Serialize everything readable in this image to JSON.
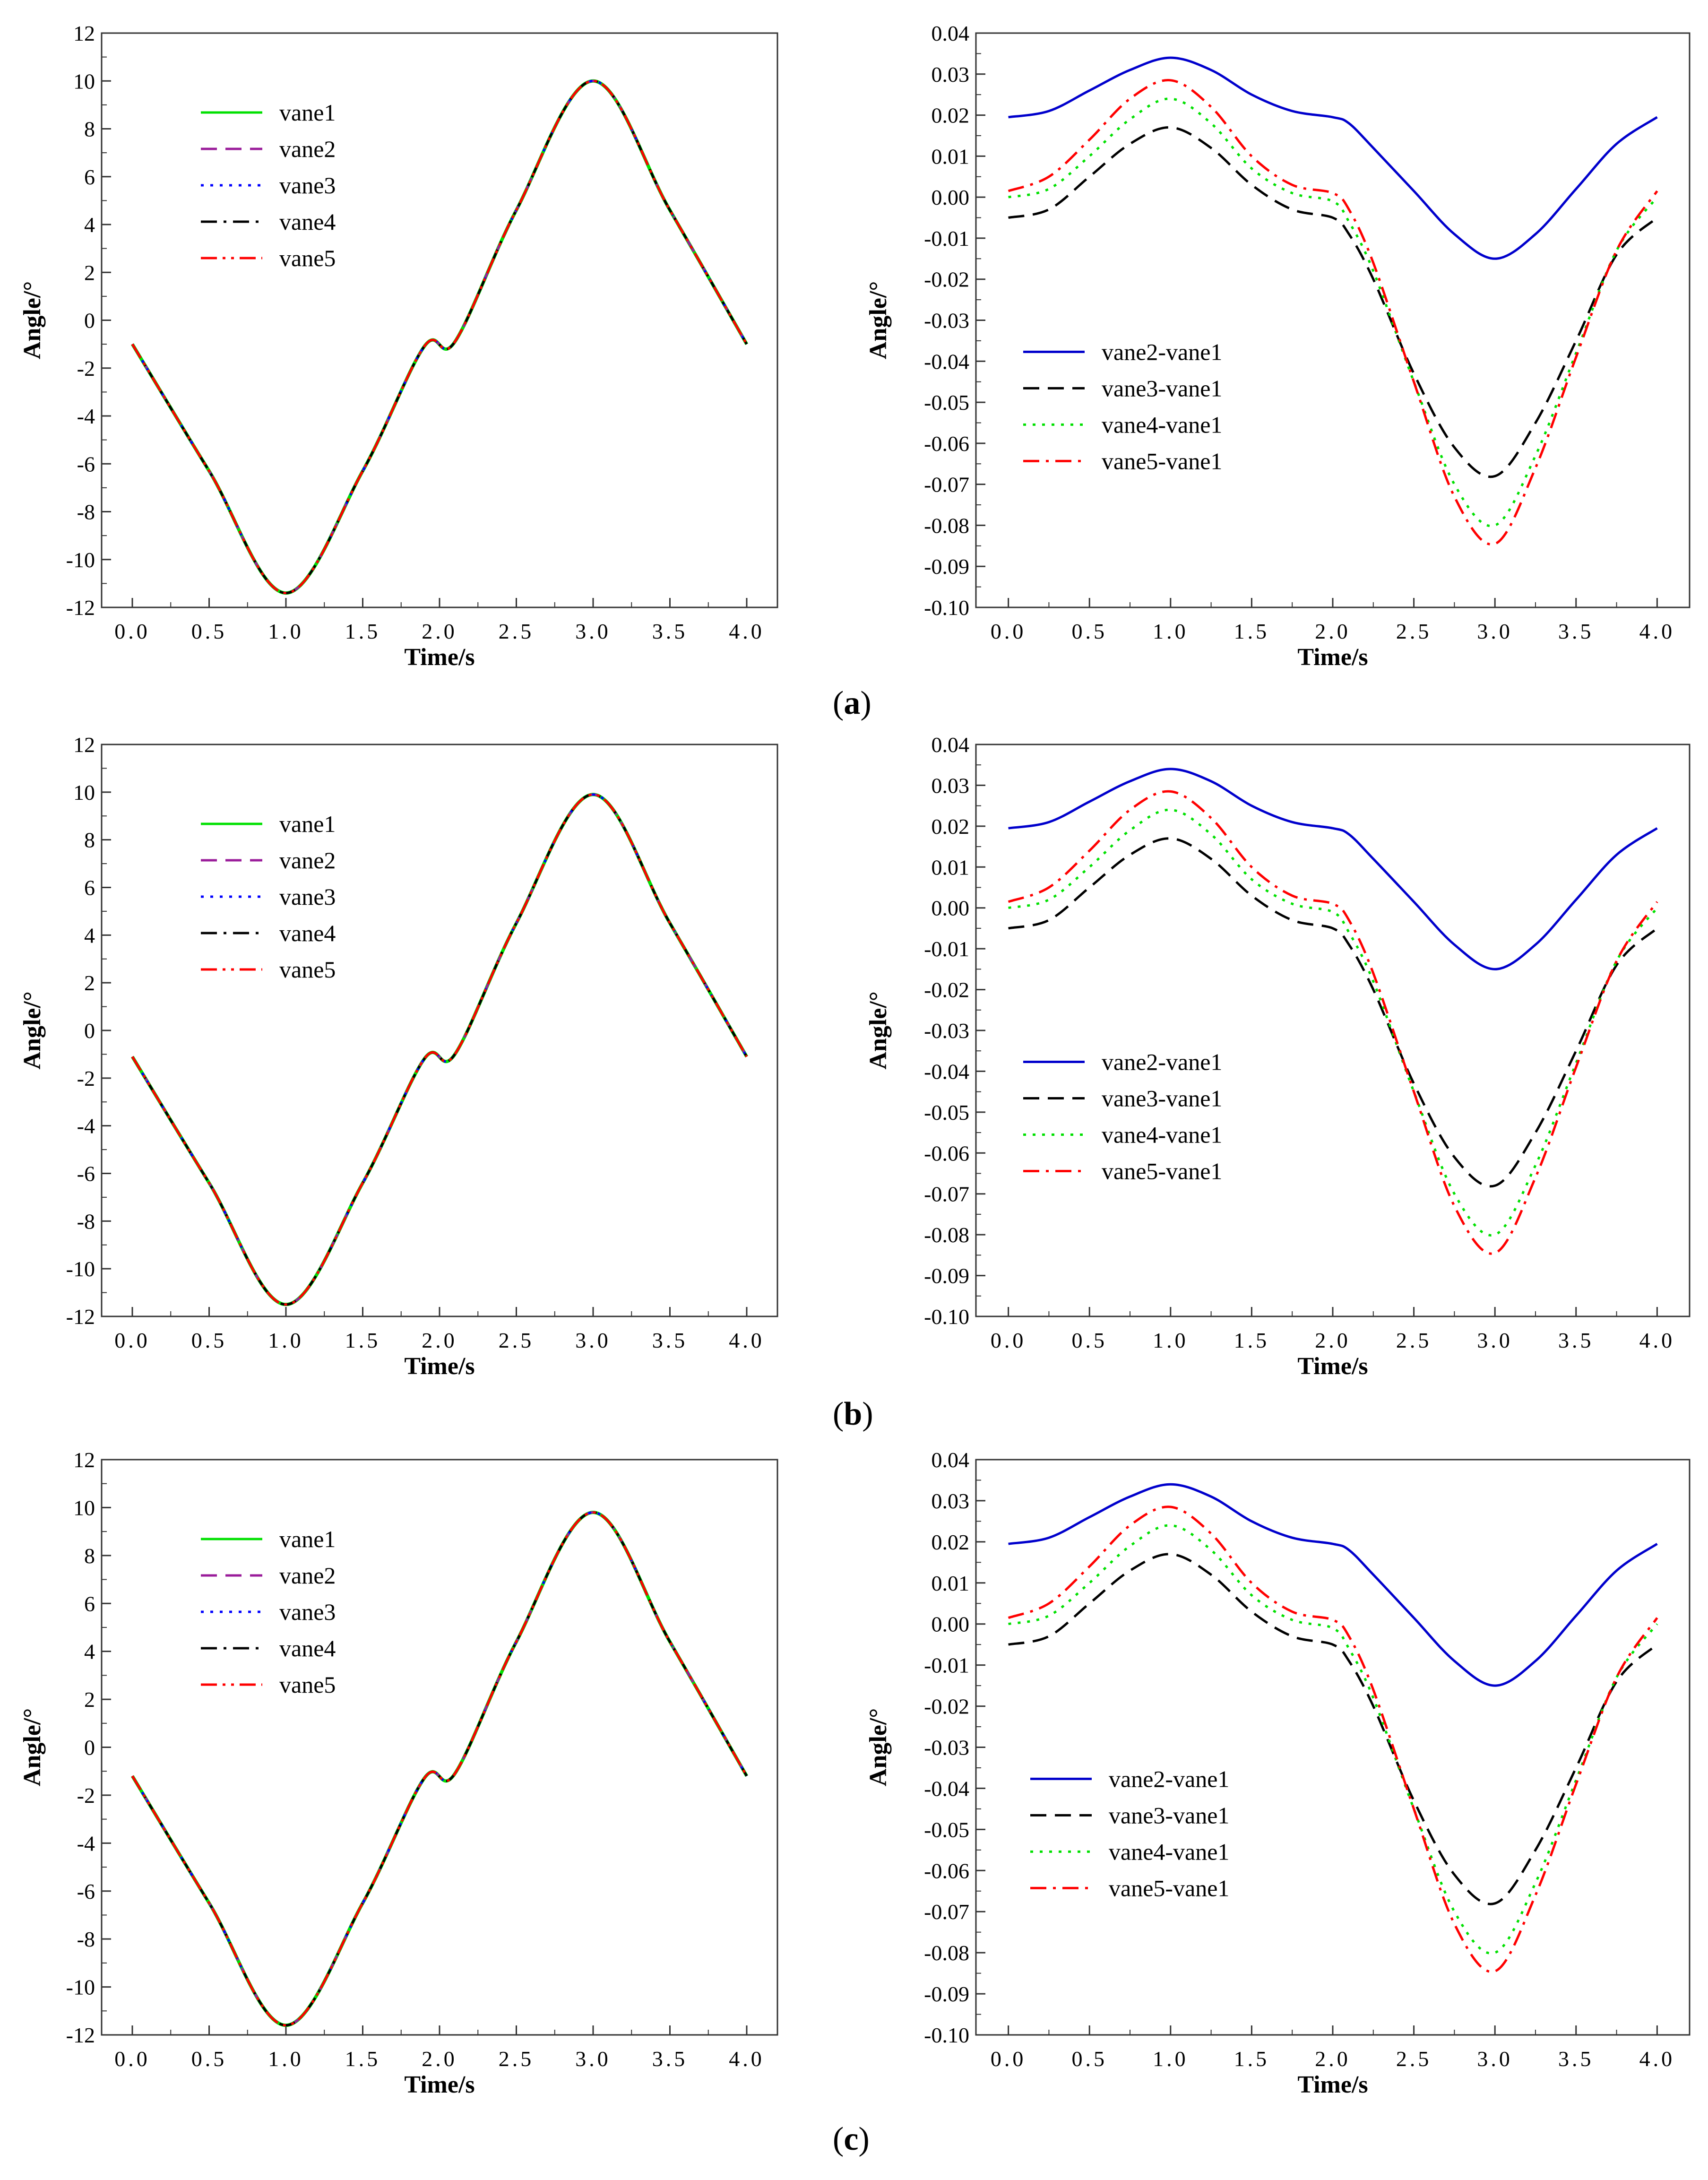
{
  "figure": {
    "captions": [
      {
        "open": "(",
        "label": "a",
        "close": ")"
      },
      {
        "open": "(",
        "label": "b",
        "close": ")"
      },
      {
        "open": "(",
        "label": "c",
        "close": ")"
      }
    ]
  },
  "chart_data": [
    {
      "id": "a-left",
      "type": "line",
      "title": "",
      "xlabel": "Time/s",
      "ylabel": "Angle/°",
      "xlim": [
        -0.2,
        4.2
      ],
      "ylim": [
        -12,
        12
      ],
      "xticks": [
        "0.0",
        "0.5",
        "1.0",
        "1.5",
        "2.0",
        "2.5",
        "3.0",
        "3.5",
        "4.0"
      ],
      "yticks": [
        "-12",
        "-10",
        "-8",
        "-6",
        "-4",
        "-2",
        "0",
        "2",
        "4",
        "6",
        "8",
        "10",
        "12"
      ],
      "legend_position": "upper-left",
      "x": [
        0,
        0.5,
        1.0,
        1.5,
        1.9,
        2.1,
        2.5,
        3.0,
        3.5,
        4.0
      ],
      "series": [
        {
          "name": "vane1",
          "color": "#00e000",
          "dash": "solid",
          "values": [
            -1.0,
            -6.3,
            -11.4,
            -6.3,
            -1.1,
            -0.9,
            4.6,
            10.0,
            4.6,
            -1.0
          ]
        },
        {
          "name": "vane2",
          "color": "#9a1c9a",
          "dash": "dash",
          "values": [
            -1.0,
            -6.3,
            -11.4,
            -6.3,
            -1.1,
            -0.9,
            4.6,
            10.0,
            4.6,
            -1.0
          ]
        },
        {
          "name": "vane3",
          "color": "#0000ff",
          "dash": "dot",
          "values": [
            -1.0,
            -6.3,
            -11.4,
            -6.3,
            -1.1,
            -0.9,
            4.6,
            10.0,
            4.6,
            -1.0
          ]
        },
        {
          "name": "vane4",
          "color": "#000000",
          "dash": "dashdot",
          "values": [
            -1.0,
            -6.3,
            -11.4,
            -6.3,
            -1.1,
            -0.9,
            4.6,
            10.0,
            4.6,
            -1.0
          ]
        },
        {
          "name": "vane5",
          "color": "#ff0000",
          "dash": "dashdotdot",
          "values": [
            -1.0,
            -6.3,
            -11.4,
            -6.3,
            -1.1,
            -0.9,
            4.6,
            10.0,
            4.6,
            -1.0
          ]
        }
      ]
    },
    {
      "id": "a-right",
      "type": "line",
      "title": "",
      "xlabel": "Time/s",
      "ylabel": "Angle/°",
      "xlim": [
        -0.2,
        4.2
      ],
      "ylim": [
        -0.1,
        0.04
      ],
      "xticks": [
        "0.0",
        "0.5",
        "1.0",
        "1.5",
        "2.0",
        "2.5",
        "3.0",
        "3.5",
        "4.0"
      ],
      "yticks": [
        "-0.10",
        "-0.09",
        "-0.08",
        "-0.07",
        "-0.06",
        "-0.05",
        "-0.04",
        "-0.03",
        "-0.02",
        "-0.01",
        "0.00",
        "0.01",
        "0.02",
        "0.03",
        "0.04"
      ],
      "legend_position": "lower-left",
      "x": [
        0,
        0.25,
        0.5,
        0.75,
        1.0,
        1.25,
        1.5,
        1.75,
        2.0,
        2.1,
        2.25,
        2.5,
        2.75,
        3.0,
        3.25,
        3.5,
        3.75,
        4.0
      ],
      "series": [
        {
          "name": "vane2-vane1",
          "color": "#0000cc",
          "dash": "solid",
          "values": [
            0.0195,
            0.021,
            0.026,
            0.031,
            0.034,
            0.031,
            0.025,
            0.021,
            0.0195,
            0.018,
            0.012,
            0.0015,
            -0.009,
            -0.015,
            -0.009,
            0.002,
            0.013,
            0.0195
          ]
        },
        {
          "name": "vane3-vane1",
          "color": "#000000",
          "dash": "dash",
          "values": [
            -0.005,
            -0.003,
            0.005,
            0.013,
            0.017,
            0.012,
            0.003,
            -0.003,
            -0.005,
            -0.009,
            -0.02,
            -0.043,
            -0.061,
            -0.068,
            -0.055,
            -0.035,
            -0.014,
            -0.005
          ]
        },
        {
          "name": "vane4-vane1",
          "color": "#00e000",
          "dash": "dot",
          "values": [
            0.0,
            0.002,
            0.01,
            0.019,
            0.024,
            0.018,
            0.007,
            0.001,
            -0.001,
            -0.006,
            -0.018,
            -0.045,
            -0.07,
            -0.08,
            -0.063,
            -0.038,
            -0.013,
            0.0
          ]
        },
        {
          "name": "vane5-vane1",
          "color": "#ff0000",
          "dash": "dashdot",
          "values": [
            0.0015,
            0.005,
            0.014,
            0.024,
            0.0285,
            0.022,
            0.01,
            0.003,
            0.001,
            -0.003,
            -0.016,
            -0.045,
            -0.073,
            -0.0845,
            -0.066,
            -0.039,
            -0.013,
            0.0015
          ]
        }
      ]
    },
    {
      "id": "b-left",
      "type": "line",
      "title": "",
      "xlabel": "Time/s",
      "ylabel": "Angle/°",
      "xlim": [
        -0.2,
        4.2
      ],
      "ylim": [
        -12,
        12
      ],
      "xticks": [
        "0.0",
        "0.5",
        "1.0",
        "1.5",
        "2.0",
        "2.5",
        "3.0",
        "3.5",
        "4.0"
      ],
      "yticks": [
        "-12",
        "-10",
        "-8",
        "-6",
        "-4",
        "-2",
        "0",
        "2",
        "4",
        "6",
        "8",
        "10",
        "12"
      ],
      "legend_position": "upper-left",
      "x": [
        0,
        0.5,
        1.0,
        1.5,
        1.9,
        2.1,
        2.5,
        3.0,
        3.5,
        4.0
      ],
      "series": [
        {
          "name": "vane1",
          "color": "#00e000",
          "dash": "solid",
          "values": [
            -1.1,
            -6.4,
            -11.5,
            -6.4,
            -1.2,
            -1.0,
            4.5,
            9.9,
            4.5,
            -1.1
          ]
        },
        {
          "name": "vane2",
          "color": "#9a1c9a",
          "dash": "dash",
          "values": [
            -1.1,
            -6.4,
            -11.5,
            -6.4,
            -1.2,
            -1.0,
            4.5,
            9.9,
            4.5,
            -1.1
          ]
        },
        {
          "name": "vane3",
          "color": "#0000ff",
          "dash": "dot",
          "values": [
            -1.1,
            -6.4,
            -11.5,
            -6.4,
            -1.2,
            -1.0,
            4.5,
            9.9,
            4.5,
            -1.1
          ]
        },
        {
          "name": "vane4",
          "color": "#000000",
          "dash": "dashdot",
          "values": [
            -1.1,
            -6.4,
            -11.5,
            -6.4,
            -1.2,
            -1.0,
            4.5,
            9.9,
            4.5,
            -1.1
          ]
        },
        {
          "name": "vane5",
          "color": "#ff0000",
          "dash": "dashdotdot",
          "values": [
            -1.1,
            -6.4,
            -11.5,
            -6.4,
            -1.2,
            -1.0,
            4.5,
            9.9,
            4.5,
            -1.1
          ]
        }
      ]
    },
    {
      "id": "b-right",
      "type": "line",
      "title": "",
      "xlabel": "Time/s",
      "ylabel": "Angle/°",
      "xlim": [
        -0.2,
        4.2
      ],
      "ylim": [
        -0.1,
        0.04
      ],
      "xticks": [
        "0.0",
        "0.5",
        "1.0",
        "1.5",
        "2.0",
        "2.5",
        "3.0",
        "3.5",
        "4.0"
      ],
      "yticks": [
        "-0.10",
        "-0.09",
        "-0.08",
        "-0.07",
        "-0.06",
        "-0.05",
        "-0.04",
        "-0.03",
        "-0.02",
        "-0.01",
        "0.00",
        "0.01",
        "0.02",
        "0.03",
        "0.04"
      ],
      "legend_position": "lower-left",
      "x": [
        0,
        0.25,
        0.5,
        0.75,
        1.0,
        1.25,
        1.5,
        1.75,
        2.0,
        2.1,
        2.25,
        2.5,
        2.75,
        3.0,
        3.25,
        3.5,
        3.75,
        4.0
      ],
      "series": [
        {
          "name": "vane2-vane1",
          "color": "#0000cc",
          "dash": "solid",
          "values": [
            0.0195,
            0.021,
            0.026,
            0.031,
            0.034,
            0.031,
            0.025,
            0.021,
            0.0195,
            0.018,
            0.012,
            0.0015,
            -0.009,
            -0.015,
            -0.009,
            0.002,
            0.013,
            0.0195
          ]
        },
        {
          "name": "vane3-vane1",
          "color": "#000000",
          "dash": "dash",
          "values": [
            -0.005,
            -0.003,
            0.005,
            0.013,
            0.017,
            0.012,
            0.003,
            -0.003,
            -0.005,
            -0.009,
            -0.02,
            -0.043,
            -0.061,
            -0.068,
            -0.055,
            -0.035,
            -0.014,
            -0.005
          ]
        },
        {
          "name": "vane4-vane1",
          "color": "#00e000",
          "dash": "dot",
          "values": [
            0.0,
            0.002,
            0.01,
            0.019,
            0.024,
            0.018,
            0.007,
            0.001,
            -0.001,
            -0.006,
            -0.018,
            -0.045,
            -0.07,
            -0.08,
            -0.063,
            -0.038,
            -0.013,
            0.0
          ]
        },
        {
          "name": "vane5-vane1",
          "color": "#ff0000",
          "dash": "dashdot",
          "values": [
            0.0015,
            0.005,
            0.014,
            0.024,
            0.0285,
            0.022,
            0.01,
            0.003,
            0.001,
            -0.003,
            -0.016,
            -0.045,
            -0.073,
            -0.0845,
            -0.066,
            -0.039,
            -0.013,
            0.0015
          ]
        }
      ]
    },
    {
      "id": "c-left",
      "type": "line",
      "title": "",
      "xlabel": "Time/s",
      "ylabel": "Angle/°",
      "xlim": [
        -0.2,
        4.2
      ],
      "ylim": [
        -12,
        12
      ],
      "xticks": [
        "0.0",
        "0.5",
        "1.0",
        "1.5",
        "2.0",
        "2.5",
        "3.0",
        "3.5",
        "4.0"
      ],
      "yticks": [
        "-12",
        "-10",
        "-8",
        "-6",
        "-4",
        "-2",
        "0",
        "2",
        "4",
        "6",
        "8",
        "10",
        "12"
      ],
      "legend_position": "upper-left",
      "x": [
        0,
        0.5,
        1.0,
        1.5,
        1.9,
        2.1,
        2.5,
        3.0,
        3.5,
        4.0
      ],
      "series": [
        {
          "name": "vane1",
          "color": "#00e000",
          "dash": "solid",
          "values": [
            -1.2,
            -6.5,
            -11.6,
            -6.5,
            -1.3,
            -1.1,
            4.4,
            9.8,
            4.4,
            -1.2
          ]
        },
        {
          "name": "vane2",
          "color": "#9a1c9a",
          "dash": "dash",
          "values": [
            -1.2,
            -6.5,
            -11.6,
            -6.5,
            -1.3,
            -1.1,
            4.4,
            9.8,
            4.4,
            -1.2
          ]
        },
        {
          "name": "vane3",
          "color": "#0000ff",
          "dash": "dot",
          "values": [
            -1.2,
            -6.5,
            -11.6,
            -6.5,
            -1.3,
            -1.1,
            4.4,
            9.8,
            4.4,
            -1.2
          ]
        },
        {
          "name": "vane4",
          "color": "#000000",
          "dash": "dashdot",
          "values": [
            -1.2,
            -6.5,
            -11.6,
            -6.5,
            -1.3,
            -1.1,
            4.4,
            9.8,
            4.4,
            -1.2
          ]
        },
        {
          "name": "vane5",
          "color": "#ff0000",
          "dash": "dashdotdot",
          "values": [
            -1.2,
            -6.5,
            -11.6,
            -6.5,
            -1.3,
            -1.1,
            4.4,
            9.8,
            4.4,
            -1.2
          ]
        }
      ]
    },
    {
      "id": "c-right",
      "type": "line",
      "title": "",
      "xlabel": "Time/s",
      "ylabel": "Angle/°",
      "xlim": [
        -0.2,
        4.2
      ],
      "ylim": [
        -0.1,
        0.04
      ],
      "xticks": [
        "0.0",
        "0.5",
        "1.0",
        "1.5",
        "2.0",
        "2.5",
        "3.0",
        "3.5",
        "4.0"
      ],
      "yticks": [
        "-0.10",
        "-0.09",
        "-0.08",
        "-0.07",
        "-0.06",
        "-0.05",
        "-0.04",
        "-0.03",
        "-0.02",
        "-0.01",
        "0.00",
        "0.01",
        "0.02",
        "0.03",
        "0.04"
      ],
      "legend_position": "lower-left",
      "x": [
        0,
        0.25,
        0.5,
        0.75,
        1.0,
        1.25,
        1.5,
        1.75,
        2.0,
        2.1,
        2.25,
        2.5,
        2.75,
        3.0,
        3.25,
        3.5,
        3.75,
        4.0
      ],
      "series": [
        {
          "name": "vane2-vane1",
          "color": "#0000cc",
          "dash": "solid",
          "values": [
            0.0195,
            0.021,
            0.026,
            0.031,
            0.034,
            0.031,
            0.025,
            0.021,
            0.0195,
            0.018,
            0.012,
            0.0015,
            -0.009,
            -0.015,
            -0.009,
            0.002,
            0.013,
            0.0195
          ]
        },
        {
          "name": "vane3-vane1",
          "color": "#000000",
          "dash": "dash",
          "values": [
            -0.005,
            -0.003,
            0.005,
            0.013,
            0.017,
            0.012,
            0.003,
            -0.003,
            -0.005,
            -0.009,
            -0.02,
            -0.043,
            -0.061,
            -0.068,
            -0.055,
            -0.035,
            -0.014,
            -0.005
          ]
        },
        {
          "name": "vane4-vane1",
          "color": "#00e000",
          "dash": "dot",
          "values": [
            0.0,
            0.002,
            0.01,
            0.019,
            0.024,
            0.018,
            0.007,
            0.001,
            -0.001,
            -0.006,
            -0.018,
            -0.045,
            -0.07,
            -0.08,
            -0.063,
            -0.038,
            -0.013,
            0.0
          ]
        },
        {
          "name": "vane5-vane1",
          "color": "#ff0000",
          "dash": "dashdot",
          "values": [
            0.0015,
            0.005,
            0.014,
            0.024,
            0.0285,
            0.022,
            0.01,
            0.003,
            0.001,
            -0.003,
            -0.016,
            -0.045,
            -0.073,
            -0.0845,
            -0.066,
            -0.039,
            -0.013,
            0.0015
          ]
        }
      ]
    }
  ]
}
